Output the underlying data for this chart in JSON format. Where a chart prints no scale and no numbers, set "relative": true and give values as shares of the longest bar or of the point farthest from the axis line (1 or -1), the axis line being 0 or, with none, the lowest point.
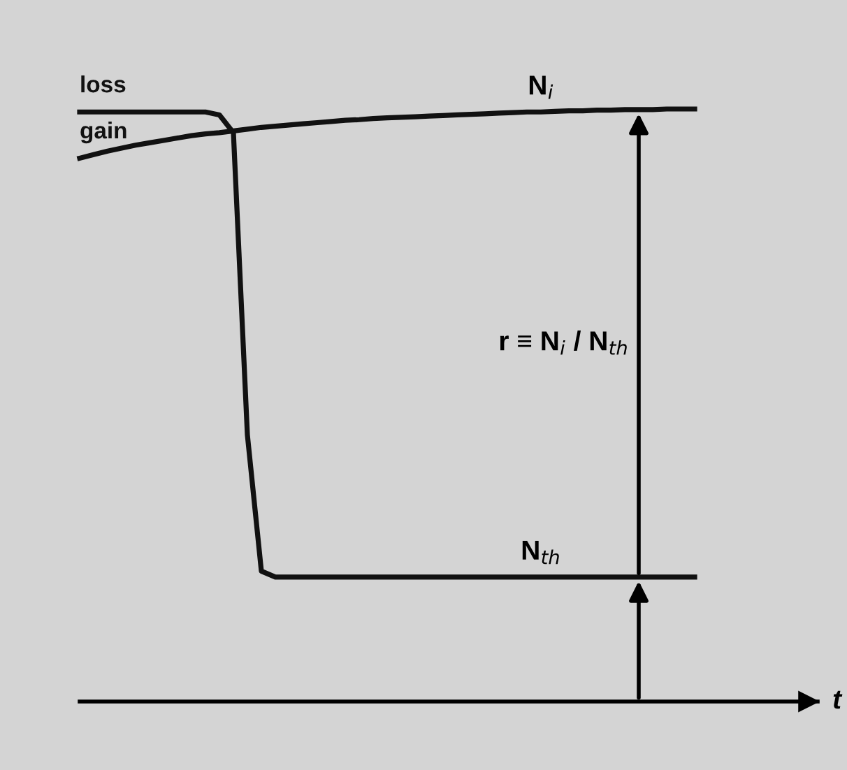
{
  "chart_data": {
    "type": "line",
    "relative": true,
    "xlabel": "t",
    "categories": [
      null,
      null,
      null,
      null,
      null,
      null,
      null,
      null,
      null,
      null,
      null,
      null,
      null,
      null,
      null,
      null,
      null,
      null,
      null,
      null,
      null,
      null,
      null,
      null,
      null,
      null,
      null,
      null,
      null,
      null,
      null,
      null,
      null,
      null,
      null,
      null,
      null,
      null,
      null,
      null,
      null,
      null,
      null,
      null,
      null
    ],
    "series": [
      {
        "name": "loss",
        "color": "#111111",
        "values": [
          0.995,
          0.995,
          0.995,
          0.995,
          0.995,
          0.995,
          0.995,
          0.995,
          0.995,
          0.995,
          0.99,
          0.96,
          0.45,
          0.22,
          0.21,
          0.21,
          0.21,
          0.21,
          0.21,
          0.21,
          0.21,
          0.21,
          0.21,
          0.21,
          0.21,
          0.21,
          0.21,
          0.21,
          0.21,
          0.21,
          0.21,
          0.21,
          0.21,
          0.21,
          0.21,
          0.21,
          0.21,
          0.21,
          0.21,
          0.21,
          0.21,
          0.21,
          0.21,
          0.21,
          0.21
        ]
      },
      {
        "name": "gain",
        "color": "#111111",
        "values": [
          0.917,
          0.923,
          0.929,
          0.934,
          0.939,
          0.943,
          0.947,
          0.951,
          0.955,
          0.958,
          0.96,
          0.963,
          0.966,
          0.969,
          0.971,
          0.973,
          0.975,
          0.977,
          0.979,
          0.981,
          0.982,
          0.984,
          0.985,
          0.986,
          0.987,
          0.988,
          0.989,
          0.99,
          0.991,
          0.992,
          0.993,
          0.994,
          0.995,
          0.995,
          0.996,
          0.997,
          0.997,
          0.998,
          0.998,
          0.999,
          0.999,
          0.999,
          1.0,
          1.0,
          1.0
        ]
      }
    ],
    "annotations": [
      "N$_{i}$",
      "N$_{th}$",
      "r ≡ N$_{i}$ / N$_{th}$"
    ],
    "line_style": "solid",
    "marker": "none",
    "legend": false
  }
}
